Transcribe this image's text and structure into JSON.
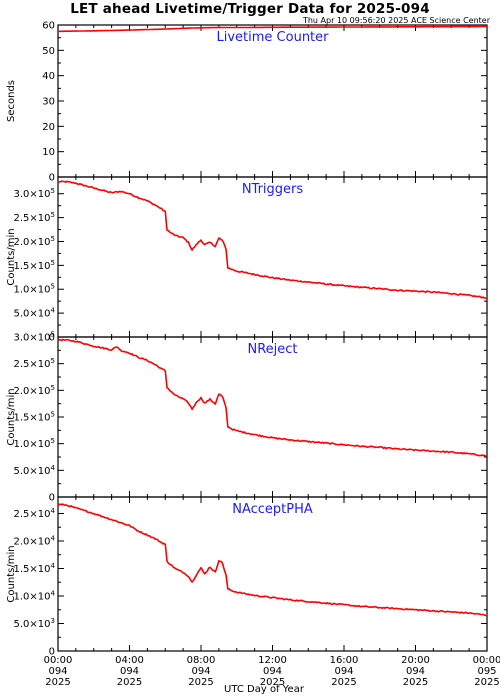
{
  "title": "LET ahead Livetime/Trigger Data for 2025-094",
  "timestamp": "Thu Apr 10 09:56:20 2025 ACE Science Center",
  "xlabel": "UTC Day of Year",
  "colors": {
    "series": "#ff0000",
    "panel_title": "#1a1aff",
    "axes": "#000000"
  },
  "x_ticks": [
    {
      "hour": 0,
      "time": "00:00",
      "doy": "094",
      "year": "2025"
    },
    {
      "hour": 4,
      "time": "04:00",
      "doy": "094",
      "year": "2025"
    },
    {
      "hour": 8,
      "time": "08:00",
      "doy": "094",
      "year": "2025"
    },
    {
      "hour": 12,
      "time": "12:00",
      "doy": "094",
      "year": "2025"
    },
    {
      "hour": 16,
      "time": "16:00",
      "doy": "094",
      "year": "2025"
    },
    {
      "hour": 20,
      "time": "20:00",
      "doy": "094",
      "year": "2025"
    },
    {
      "hour": 24,
      "time": "00:00",
      "doy": "095",
      "year": "2025"
    }
  ],
  "chart_data": [
    {
      "type": "line",
      "title": "Livetime Counter",
      "ylabel": "Seconds",
      "xlim": [
        0,
        24
      ],
      "ylim": [
        0,
        60
      ],
      "yticks": [
        0,
        10,
        20,
        30,
        40,
        50,
        60
      ],
      "ytick_labels": [
        "0",
        "10",
        "20",
        "30",
        "40",
        "50",
        "60"
      ],
      "series": [
        {
          "x": [
            0,
            2,
            4,
            6,
            7,
            8,
            9,
            10,
            12,
            16,
            20,
            24
          ],
          "y": [
            57.5,
            57.7,
            58.0,
            58.4,
            58.7,
            58.9,
            59.0,
            59.0,
            59.1,
            59.2,
            59.3,
            59.4
          ]
        }
      ]
    },
    {
      "type": "line",
      "title": "NTriggers",
      "ylabel": "Counts/min",
      "xlim": [
        0,
        24
      ],
      "ylim": [
        0,
        335000
      ],
      "yticks": [
        0,
        50000,
        100000,
        150000,
        200000,
        250000,
        300000
      ],
      "ytick_labels": [
        {
          "m": "0",
          "e": ""
        },
        {
          "m": "5.0×10",
          "e": "4"
        },
        {
          "m": "1.0×10",
          "e": "5"
        },
        {
          "m": "1.5×10",
          "e": "5"
        },
        {
          "m": "2.0×10",
          "e": "5"
        },
        {
          "m": "2.5×10",
          "e": "5"
        },
        {
          "m": "3.0×10",
          "e": "5"
        }
      ],
      "series": [
        {
          "x": [
            0,
            0.5,
            1,
            2,
            3,
            3.5,
            4,
            4.5,
            5,
            5.5,
            5.8,
            6.0,
            6.1,
            6.3,
            6.6,
            7.0,
            7.3,
            7.5,
            7.8,
            8.0,
            8.2,
            8.5,
            8.8,
            9.0,
            9.2,
            9.4,
            9.5,
            9.7,
            10,
            11,
            12,
            13,
            14,
            15,
            16,
            17,
            18,
            19,
            20,
            21,
            22,
            23,
            24
          ],
          "y": [
            325000,
            325000,
            322000,
            312000,
            302000,
            305000,
            300000,
            292000,
            285000,
            275000,
            268000,
            262000,
            225000,
            218000,
            212000,
            208000,
            198000,
            182000,
            196000,
            203000,
            193000,
            198000,
            190000,
            207000,
            202000,
            185000,
            145000,
            142000,
            138000,
            131000,
            124000,
            119000,
            115000,
            111000,
            107000,
            104000,
            101000,
            98000,
            96000,
            94000,
            91000,
            87000,
            82000
          ]
        }
      ]
    },
    {
      "type": "line",
      "title": "NReject",
      "ylabel": "Counts/min",
      "xlim": [
        0,
        24
      ],
      "ylim": [
        0,
        300000
      ],
      "yticks": [
        0,
        50000,
        100000,
        150000,
        200000,
        250000,
        300000
      ],
      "ytick_labels": [
        {
          "m": "0",
          "e": ""
        },
        {
          "m": "5.0×10",
          "e": "4"
        },
        {
          "m": "1.0×10",
          "e": "5"
        },
        {
          "m": "1.5×10",
          "e": "5"
        },
        {
          "m": "2.0×10",
          "e": "5"
        },
        {
          "m": "2.5×10",
          "e": "5"
        },
        {
          "m": "3.0×10",
          "e": "5"
        }
      ],
      "series": [
        {
          "x": [
            0,
            0.5,
            1,
            2,
            3,
            3.3,
            3.5,
            4,
            4.5,
            5,
            5.5,
            5.8,
            6.0,
            6.1,
            6.3,
            6.6,
            7.0,
            7.3,
            7.5,
            7.8,
            8.0,
            8.2,
            8.5,
            8.8,
            9.0,
            9.2,
            9.4,
            9.5,
            9.7,
            10,
            11,
            12,
            13,
            14,
            15,
            16,
            17,
            18,
            19,
            20,
            21,
            22,
            23,
            24
          ],
          "y": [
            295000,
            294000,
            292000,
            283000,
            276000,
            282000,
            275000,
            270000,
            262000,
            256000,
            247000,
            240000,
            237000,
            206000,
            198000,
            190000,
            184000,
            176000,
            165000,
            180000,
            186000,
            176000,
            183000,
            175000,
            193000,
            188000,
            168000,
            132000,
            128000,
            124000,
            117000,
            111000,
            107000,
            104000,
            101000,
            98000,
            95000,
            93000,
            90000,
            88000,
            86000,
            84000,
            81000,
            77000
          ]
        }
      ]
    },
    {
      "type": "line",
      "title": "NAcceptPHA",
      "ylabel": "Counts/min",
      "xlim": [
        0,
        24
      ],
      "ylim": [
        0,
        28000
      ],
      "yticks": [
        0,
        5000,
        10000,
        15000,
        20000,
        25000
      ],
      "ytick_labels": [
        {
          "m": "0",
          "e": ""
        },
        {
          "m": "5.0×10",
          "e": "3"
        },
        {
          "m": "1.0×10",
          "e": "4"
        },
        {
          "m": "1.5×10",
          "e": "4"
        },
        {
          "m": "2.0×10",
          "e": "4"
        },
        {
          "m": "2.5×10",
          "e": "4"
        }
      ],
      "series": [
        {
          "x": [
            0,
            0.5,
            1,
            2,
            3,
            4,
            4.5,
            5,
            5.5,
            5.8,
            6.0,
            6.1,
            6.3,
            6.6,
            7.0,
            7.3,
            7.5,
            7.8,
            8.0,
            8.2,
            8.5,
            8.8,
            9.0,
            9.2,
            9.4,
            9.5,
            9.7,
            10,
            11,
            12,
            13,
            14,
            15,
            16,
            17,
            18,
            19,
            20,
            21,
            22,
            23,
            24
          ],
          "y": [
            26700,
            26500,
            26000,
            25000,
            23900,
            22800,
            21800,
            21100,
            20300,
            19700,
            19400,
            16300,
            15700,
            14900,
            14300,
            13600,
            12500,
            14200,
            15100,
            14000,
            15300,
            14300,
            16500,
            16000,
            13800,
            11300,
            11000,
            10700,
            10100,
            9700,
            9300,
            9000,
            8700,
            8400,
            8100,
            7900,
            7700,
            7500,
            7300,
            7100,
            6900,
            6500
          ]
        }
      ]
    }
  ]
}
